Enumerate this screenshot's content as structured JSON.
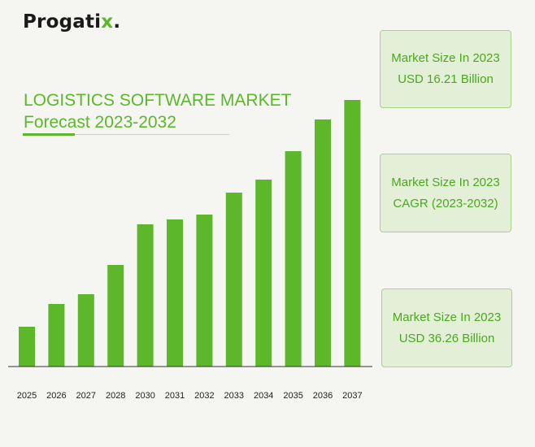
{
  "brand": {
    "name_main": "Progati",
    "name_accent": "x",
    "name_tail": "."
  },
  "colors": {
    "accent": "#5cb82a",
    "box_bg": "#e3f0d7",
    "box_border": "#a8d48a"
  },
  "info_boxes": [
    {
      "line1": "Market Size In 2023",
      "line2": "USD 16.21 Billion"
    },
    {
      "line1": "Market Size In 2023",
      "line2": "CAGR (2023-2032)"
    },
    {
      "line1": "Market Size In 2023",
      "line2": "USD 36.26 Billion"
    }
  ],
  "chart_data": {
    "type": "bar",
    "title": "LOGISTICS SOFTWARE MARKET",
    "subtitle": "Forecast 2023-2032",
    "categories": [
      "2025",
      "2026",
      "2027",
      "2028",
      "2030",
      "2031",
      "2032",
      "2033",
      "2034",
      "2035",
      "2036",
      "2037"
    ],
    "values": [
      49,
      77,
      89,
      125,
      175,
      181,
      187,
      214,
      230,
      265,
      304,
      328
    ],
    "ylim": [
      0,
      340
    ],
    "grid": false,
    "legend": "none",
    "color": "#5cb82a"
  }
}
